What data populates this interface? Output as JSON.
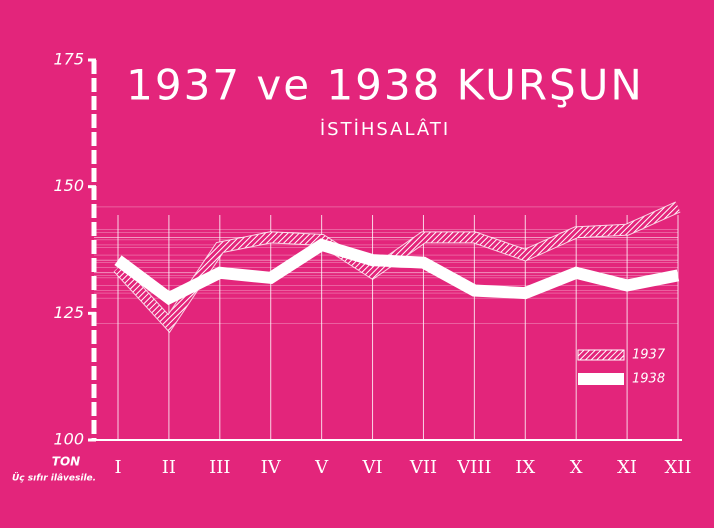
{
  "chart_data": {
    "type": "line",
    "title": "1937 ve 1938 KURŞUN",
    "subtitle": "İSTİHSALÂTI",
    "y_label": "TON",
    "note": "Üç sıfır ilâvesile.",
    "categories": [
      "I",
      "II",
      "III",
      "IV",
      "V",
      "VI",
      "VII",
      "VIII",
      "IX",
      "X",
      "XI",
      "XII"
    ],
    "series": [
      {
        "name": "1937",
        "color": "#ffffff",
        "style": "hatched",
        "values": [
          134,
          123,
          138,
          140,
          139.5,
          133,
          140,
          140,
          136.5,
          141,
          141.5,
          146
        ]
      },
      {
        "name": "1938",
        "color": "#ffffff",
        "style": "solid",
        "values": [
          135.5,
          128,
          133,
          132,
          138.5,
          135.5,
          135,
          129.5,
          129,
          133,
          130.5,
          132.5
        ]
      }
    ],
    "ylim": [
      100,
      175
    ],
    "yticks": [
      100,
      125,
      150,
      175
    ],
    "grid": true,
    "legend": "lower right"
  }
}
